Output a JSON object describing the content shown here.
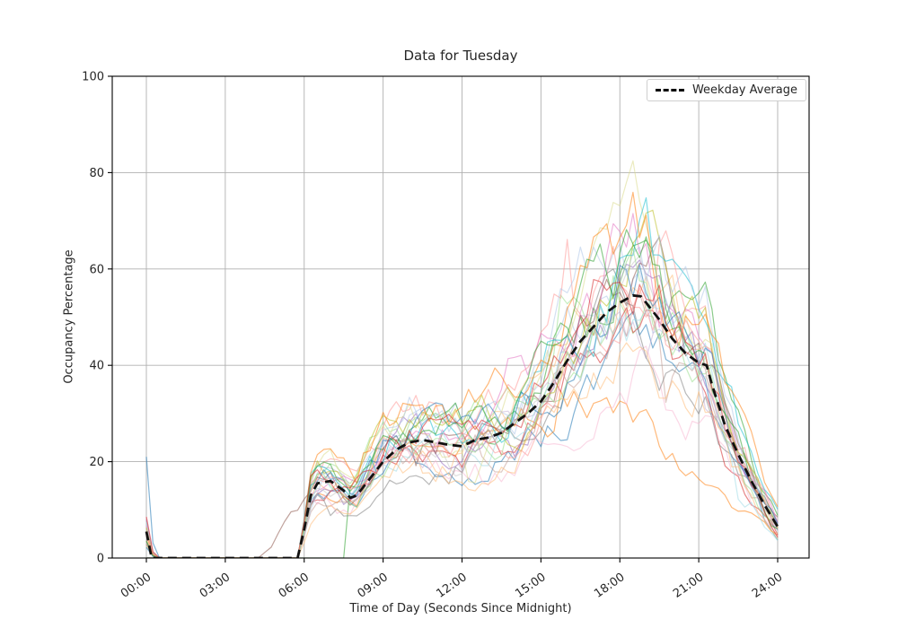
{
  "chart_data": {
    "type": "line",
    "title": "Data for Tuesday",
    "xlabel": "Time of Day (Seconds Since Midnight)",
    "ylabel": "Occupancy Percentage",
    "x_ticks": [
      {
        "hour": 0,
        "label": "00:00"
      },
      {
        "hour": 3,
        "label": "03:00"
      },
      {
        "hour": 6,
        "label": "06:00"
      },
      {
        "hour": 9,
        "label": "09:00"
      },
      {
        "hour": 12,
        "label": "12:00"
      },
      {
        "hour": 15,
        "label": "15:00"
      },
      {
        "hour": 18,
        "label": "18:00"
      },
      {
        "hour": 21,
        "label": "21:00"
      },
      {
        "hour": 24,
        "label": "24:00"
      }
    ],
    "x_tick_rotation_deg": 35,
    "y_ticks": [
      0,
      20,
      40,
      60,
      80,
      100
    ],
    "ylim": [
      0,
      100
    ],
    "xlim_hours": [
      0,
      24
    ],
    "grid": true,
    "grid_color": "#b0b0b0",
    "axes_color": "#000000",
    "legend": {
      "label": "Weekday Average",
      "position": "upper right",
      "line_style": "dashed",
      "line_color": "#000000"
    },
    "series": [
      {
        "name": "Weekday Average",
        "style": "dashed",
        "color": "#111111",
        "line_width": 2.8,
        "points_hour_value": [
          [
            0,
            5.5
          ],
          [
            0.2,
            0
          ],
          [
            1,
            0
          ],
          [
            2,
            0
          ],
          [
            3,
            0
          ],
          [
            4,
            0
          ],
          [
            5,
            0
          ],
          [
            5.75,
            0
          ],
          [
            6,
            6
          ],
          [
            6.25,
            13
          ],
          [
            6.5,
            15.5
          ],
          [
            7,
            16
          ],
          [
            7.5,
            14
          ],
          [
            7.75,
            12.5
          ],
          [
            8,
            13
          ],
          [
            8.5,
            16.5
          ],
          [
            9,
            20
          ],
          [
            9.5,
            22.5
          ],
          [
            10,
            24
          ],
          [
            10.5,
            24.5
          ],
          [
            11,
            24
          ],
          [
            11.5,
            23.5
          ],
          [
            12,
            23.2
          ],
          [
            12.5,
            24.5
          ],
          [
            13,
            25
          ],
          [
            13.5,
            26
          ],
          [
            14,
            28
          ],
          [
            14.5,
            30
          ],
          [
            15,
            32.5
          ],
          [
            15.5,
            36.5
          ],
          [
            16,
            41
          ],
          [
            16.5,
            45
          ],
          [
            17,
            48
          ],
          [
            17.5,
            51
          ],
          [
            18,
            53
          ],
          [
            18.5,
            54.5
          ],
          [
            18.8,
            54.3
          ],
          [
            19,
            53
          ],
          [
            19.5,
            49.5
          ],
          [
            20,
            45.5
          ],
          [
            20.5,
            42.5
          ],
          [
            21,
            40.5
          ],
          [
            21.3,
            40
          ],
          [
            21.5,
            36
          ],
          [
            22,
            27.5
          ],
          [
            22.5,
            21.5
          ],
          [
            23,
            16
          ],
          [
            23.5,
            11
          ],
          [
            24,
            6.5
          ]
        ]
      }
    ],
    "individual_lines": {
      "description": "Per-day occupancy traces (semi-transparent) that track the weekday average with noise; flat at 0 from ~00:20 to ~05:45, brief spike at midnight, envelope roughly 15-35% midday and 30-76% at the evening peak",
      "count": 28,
      "alpha": 0.55,
      "line_width": 1.2,
      "step_hours": 0.25,
      "seed": 20240521,
      "amplitude_range": [
        0.78,
        1.22
      ],
      "midnight_spike_max": 21,
      "tall_spike_index": 0,
      "early_ramp_index": 10,
      "late_start_index": 4,
      "low_evening_index": 2,
      "max_observed_value": 76,
      "end_values_range": [
        2,
        14
      ],
      "colors": [
        "#1f77b4",
        "#aec7e8",
        "#ff7f0e",
        "#ffbb78",
        "#2ca02c",
        "#98df8a",
        "#d62728",
        "#ff9896",
        "#9467bd",
        "#c5b0d5",
        "#8c564b",
        "#c49c94",
        "#e377c2",
        "#f7b6d2",
        "#7f7f7f",
        "#c7c7c7",
        "#bcbd22",
        "#dbdb8d",
        "#17becf",
        "#9edae5"
      ]
    }
  }
}
